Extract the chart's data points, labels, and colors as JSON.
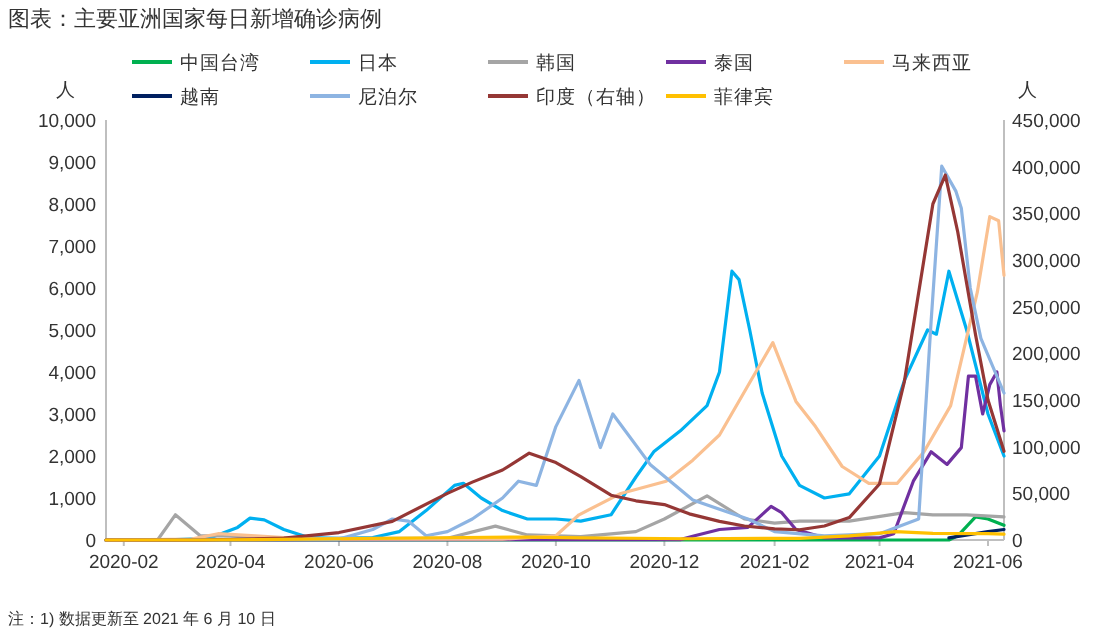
{
  "chart_data": {
    "type": "line",
    "title": "图表：主要亚洲国家每日新增确诊病例",
    "ylabel": "人",
    "y2label": "人",
    "annotations": [
      "注：1) 数据更新至 2021 年 6 月 10 日"
    ],
    "xlim": [
      "2020-01-22",
      "2021-06-10"
    ],
    "xticks": [
      {
        "value": "2020-02",
        "label": "2020-02"
      },
      {
        "value": "2020-04",
        "label": "2020-04"
      },
      {
        "value": "2020-06",
        "label": "2020-06"
      },
      {
        "value": "2020-08",
        "label": "2020-08"
      },
      {
        "value": "2020-10",
        "label": "2020-10"
      },
      {
        "value": "2020-12",
        "label": "2020-12"
      },
      {
        "value": "2021-02",
        "label": "2021-02"
      },
      {
        "value": "2021-04",
        "label": "2021-04"
      },
      {
        "value": "2021-06",
        "label": "2021-06"
      }
    ],
    "ylim": [
      0,
      10000
    ],
    "yticks": [
      0,
      {
        "value": 1000,
        "label": "1,000"
      },
      {
        "value": 2000,
        "label": "2,000"
      },
      {
        "value": 3000,
        "label": "3,000"
      },
      {
        "value": 4000,
        "label": "4,000"
      },
      {
        "value": 5000,
        "label": "5,000"
      },
      {
        "value": 6000,
        "label": "6,000"
      },
      {
        "value": 7000,
        "label": "7,000"
      },
      {
        "value": 8000,
        "label": "8,000"
      },
      {
        "value": 9000,
        "label": "9,000"
      },
      {
        "value": 10000,
        "label": "10,000"
      }
    ],
    "y2lim": [
      0,
      450000
    ],
    "y2ticks": [
      0,
      {
        "value": 50000,
        "label": "50,000"
      },
      {
        "value": 100000,
        "label": "100,000"
      },
      {
        "value": 150000,
        "label": "150,000"
      },
      {
        "value": 200000,
        "label": "200,000"
      },
      {
        "value": 250000,
        "label": "250,000"
      },
      {
        "value": 300000,
        "label": "300,000"
      },
      {
        "value": 350000,
        "label": "350,000"
      },
      {
        "value": 400000,
        "label": "400,000"
      },
      {
        "value": 450000,
        "label": "450,000"
      }
    ],
    "grid": false,
    "legend": "top",
    "marker": "none",
    "line_style": "solid",
    "series": [
      {
        "name": "中国台湾",
        "color": "#00b050",
        "x": [
          "2020-01-22",
          "2021-05-10",
          "2021-05-15",
          "2021-05-25",
          "2021-06-01",
          "2021-06-10"
        ],
        "values": [
          0,
          0,
          100,
          550,
          500,
          350
        ]
      },
      {
        "name": "日本",
        "color": "#00b0f0",
        "x": [
          "2020-01-22",
          "2020-03-01",
          "2020-03-20",
          "2020-04-05",
          "2020-04-12",
          "2020-04-20",
          "2020-05-01",
          "2020-05-15",
          "2020-06-01",
          "2020-06-20",
          "2020-07-05",
          "2020-07-20",
          "2020-08-05",
          "2020-08-10",
          "2020-08-20",
          "2020-09-01",
          "2020-09-15",
          "2020-10-01",
          "2020-10-15",
          "2020-11-01",
          "2020-11-15",
          "2020-11-25",
          "2020-12-10",
          "2020-12-25",
          "2021-01-01",
          "2021-01-08",
          "2021-01-12",
          "2021-01-18",
          "2021-01-25",
          "2021-02-05",
          "2021-02-15",
          "2021-03-01",
          "2021-03-15",
          "2021-04-01",
          "2021-04-15",
          "2021-04-28",
          "2021-05-03",
          "2021-05-10",
          "2021-05-20",
          "2021-06-01",
          "2021-06-10"
        ],
        "values": [
          0,
          10,
          40,
          300,
          520,
          480,
          250,
          60,
          40,
          60,
          200,
          700,
          1300,
          1350,
          1000,
          700,
          500,
          500,
          450,
          600,
          1500,
          2100,
          2600,
          3200,
          4000,
          6400,
          6200,
          5000,
          3500,
          2000,
          1300,
          1000,
          1100,
          2000,
          3800,
          5000,
          4900,
          6400,
          5000,
          3000,
          2000
        ]
      },
      {
        "name": "韩国",
        "color": "#a5a5a5",
        "x": [
          "2020-01-22",
          "2020-02-20",
          "2020-03-01",
          "2020-03-15",
          "2020-04-01",
          "2020-05-01",
          "2020-06-01",
          "2020-08-01",
          "2020-08-28",
          "2020-09-15",
          "2020-10-15",
          "2020-11-15",
          "2020-12-01",
          "2020-12-25",
          "2021-01-15",
          "2021-02-01",
          "2021-02-15",
          "2021-03-15",
          "2021-04-15",
          "2021-05-01",
          "2021-05-20",
          "2021-06-10"
        ],
        "values": [
          0,
          0,
          600,
          100,
          100,
          10,
          40,
          40,
          330,
          120,
          80,
          200,
          500,
          1050,
          500,
          400,
          450,
          450,
          650,
          600,
          600,
          550
        ]
      },
      {
        "name": "泰国",
        "color": "#7030a0",
        "x": [
          "2020-01-22",
          "2020-12-10",
          "2020-12-18",
          "2021-01-01",
          "2021-01-17",
          "2021-01-30",
          "2021-02-05",
          "2021-02-13",
          "2021-03-01",
          "2021-04-01",
          "2021-04-09",
          "2021-04-20",
          "2021-04-30",
          "2021-05-09",
          "2021-05-17",
          "2021-05-21",
          "2021-05-25",
          "2021-05-29",
          "2021-06-02",
          "2021-06-06",
          "2021-06-08",
          "2021-06-10"
        ],
        "values": [
          0,
          10,
          100,
          250,
          300,
          800,
          650,
          250,
          50,
          50,
          150,
          1400,
          2100,
          1800,
          2200,
          3900,
          3900,
          3000,
          3700,
          4000,
          3200,
          2600
        ]
      },
      {
        "name": "马来西亚",
        "color": "#fac090",
        "x": [
          "2020-01-22",
          "2020-03-10",
          "2020-03-25",
          "2020-04-15",
          "2020-05-15",
          "2020-09-01",
          "2020-10-01",
          "2020-10-14",
          "2020-11-06",
          "2020-12-02",
          "2020-12-17",
          "2021-01-01",
          "2021-01-16",
          "2021-01-31",
          "2021-02-13",
          "2021-02-24",
          "2021-03-11",
          "2021-03-26",
          "2021-04-11",
          "2021-04-26",
          "2021-05-11",
          "2021-05-26",
          "2021-06-02",
          "2021-06-07",
          "2021-06-10"
        ],
        "values": [
          0,
          20,
          150,
          100,
          20,
          20,
          100,
          600,
          1100,
          1400,
          1900,
          2500,
          3600,
          4700,
          3300,
          2700,
          1750,
          1350,
          1350,
          2100,
          3200,
          5900,
          7700,
          7600,
          6300
        ]
      },
      {
        "name": "越南",
        "color": "#002060",
        "x": [
          "2021-05-10",
          "2021-06-01",
          "2021-06-10"
        ],
        "values": [
          50,
          200,
          250
        ]
      },
      {
        "name": "尼泊尔",
        "color": "#8db4e2",
        "x": [
          "2020-01-22",
          "2020-06-01",
          "2020-06-20",
          "2020-07-01",
          "2020-07-10",
          "2020-07-20",
          "2020-08-01",
          "2020-08-15",
          "2020-09-01",
          "2020-09-10",
          "2020-09-20",
          "2020-10-01",
          "2020-10-14",
          "2020-10-26",
          "2020-11-02",
          "2020-11-23",
          "2020-12-17",
          "2021-01-17",
          "2021-02-01",
          "2021-03-01",
          "2021-04-01",
          "2021-04-23",
          "2021-04-30",
          "2021-05-06",
          "2021-05-14",
          "2021-05-17",
          "2021-05-22",
          "2021-05-28",
          "2021-06-10"
        ],
        "values": [
          0,
          20,
          250,
          500,
          450,
          100,
          200,
          500,
          1000,
          1400,
          1300,
          2700,
          3800,
          2200,
          3000,
          1800,
          950,
          500,
          200,
          100,
          150,
          500,
          5200,
          8900,
          8300,
          7900,
          6000,
          4800,
          3500
        ]
      },
      {
        "name": "印度（右轴）",
        "color": "#953735",
        "axis": "y2",
        "x": [
          "2020-01-22",
          "2020-03-15",
          "2020-05-01",
          "2020-06-01",
          "2020-07-01",
          "2020-08-01",
          "2020-08-15",
          "2020-09-01",
          "2020-09-16",
          "2020-10-01",
          "2020-10-15",
          "2020-11-01",
          "2020-11-15",
          "2020-12-01",
          "2020-12-15",
          "2021-01-01",
          "2021-01-15",
          "2021-02-01",
          "2021-02-15",
          "2021-03-01",
          "2021-03-15",
          "2021-04-01",
          "2021-04-15",
          "2021-05-01",
          "2021-05-08",
          "2021-05-15",
          "2021-05-25",
          "2021-06-01",
          "2021-06-10"
        ],
        "values": [
          0,
          0,
          2000,
          8000,
          20000,
          50000,
          62000,
          75000,
          93000,
          83000,
          68000,
          48000,
          42000,
          38000,
          28000,
          20000,
          15000,
          12000,
          11000,
          15000,
          24000,
          60000,
          170000,
          360000,
          391000,
          330000,
          220000,
          150000,
          95000
        ]
      },
      {
        "name": "菲律宾",
        "color": "#ffc000",
        "x": [
          "2020-01-22",
          "2020-03-15",
          "2020-04-15",
          "2020-08-10",
          "2020-09-15",
          "2020-10-15",
          "2020-12-15",
          "2021-02-15",
          "2021-03-15",
          "2021-04-10",
          "2021-05-01",
          "2021-06-01",
          "2021-06-10"
        ],
        "values": [
          0,
          0,
          10,
          60,
          70,
          50,
          30,
          40,
          100,
          200,
          160,
          150,
          140
        ]
      }
    ]
  }
}
